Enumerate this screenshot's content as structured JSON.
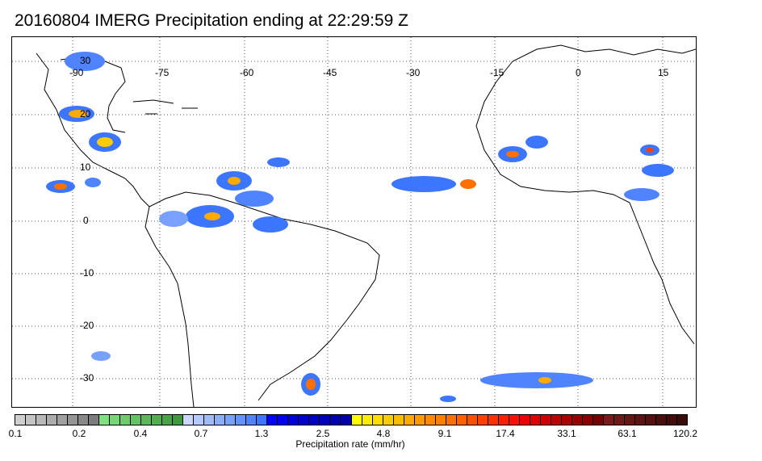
{
  "title": "20160804 IMERG Precipitation ending at 22:29:59 Z",
  "map": {
    "lon_labels": [
      "-90",
      "-75",
      "-60",
      "-45",
      "-30",
      "-15",
      "0",
      "15"
    ],
    "lat_labels": [
      "30",
      "20",
      "10",
      "0",
      "-10",
      "-20",
      "-30"
    ],
    "gridlines": "dotted"
  },
  "colorbar": {
    "title": "Precipitation rate (mm/hr)",
    "tick_labels": [
      "0.1",
      "0.2",
      "0.4",
      "0.7",
      "1.3",
      "2.5",
      "4.8",
      "9.1",
      "17.4",
      "33.1",
      "63.1",
      "120.2"
    ],
    "colors": [
      "#cfcfcf",
      "#c4c4c4",
      "#b8b8b8",
      "#acacac",
      "#a0a0a0",
      "#949494",
      "#888888",
      "#7c7c7c",
      "#7fe07f",
      "#76d676",
      "#6ccc6c",
      "#63c263",
      "#5ab85a",
      "#51ae51",
      "#48a448",
      "#3f9a3f",
      "#c8d8ff",
      "#b4caff",
      "#a0bcff",
      "#8caeff",
      "#78a0ff",
      "#6492ff",
      "#5084ff",
      "#3c76ff",
      "#0000ff",
      "#0000ee",
      "#0000dd",
      "#0000cc",
      "#0000c4",
      "#0000bb",
      "#0000b2",
      "#0000a8",
      "#ffff00",
      "#ffee00",
      "#ffdd00",
      "#ffcc00",
      "#ffbb00",
      "#ffaa00",
      "#ff9900",
      "#ff8800",
      "#ff7f00",
      "#ff7000",
      "#ff6000",
      "#ff5000",
      "#ff4000",
      "#ff3000",
      "#ff2000",
      "#ff1000",
      "#ee0000",
      "#dd0000",
      "#cc0000",
      "#bb0000",
      "#aa0000",
      "#990000",
      "#880000",
      "#770000",
      "#7a1a1a",
      "#701818",
      "#661515",
      "#5c1313",
      "#531010",
      "#4a0e0e",
      "#420c0c",
      "#3a0a0a"
    ]
  }
}
